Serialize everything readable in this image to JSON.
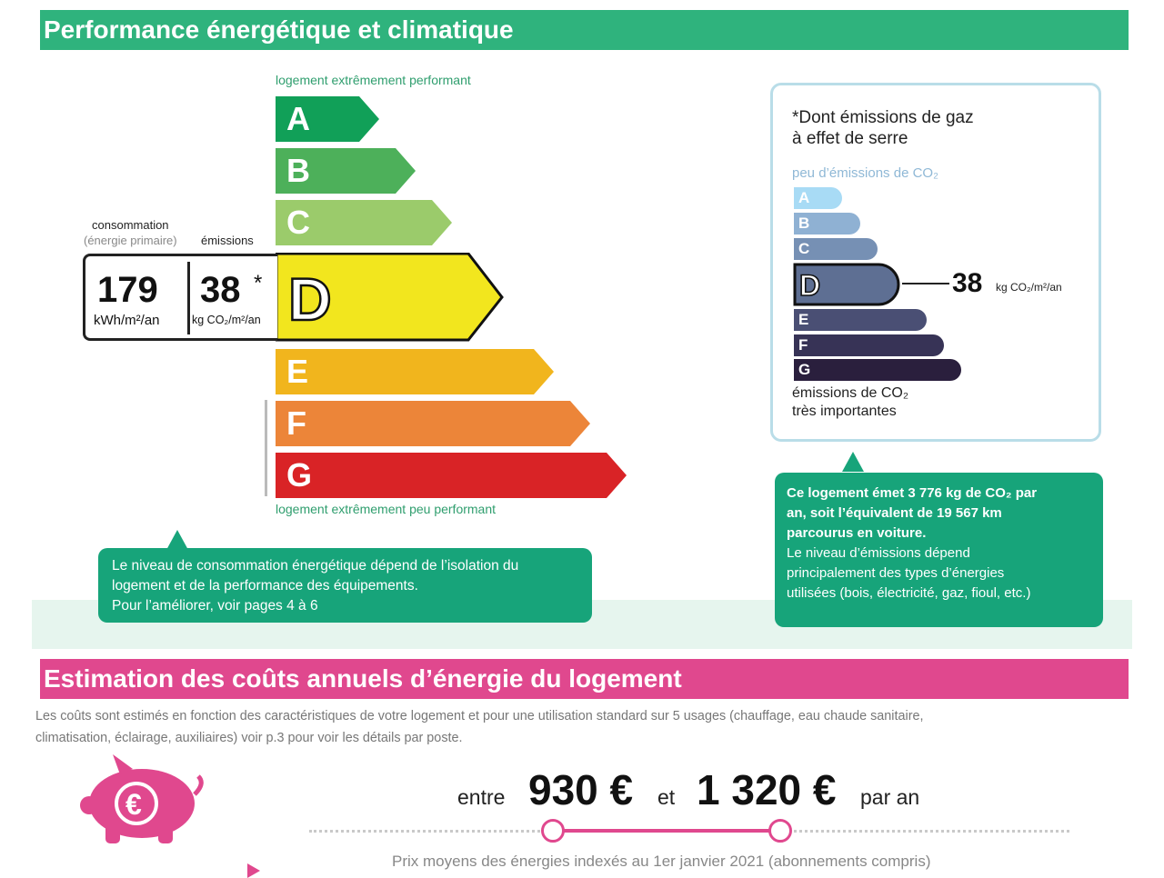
{
  "header": {
    "title": "Performance énergétique et climatique"
  },
  "energy_scale": {
    "label_top": "logement extrêmement performant",
    "label_bottom": "logement extrêmement peu performant",
    "classes": [
      {
        "letter": "A",
        "color": "#11a058"
      },
      {
        "letter": "B",
        "color": "#4db05a"
      },
      {
        "letter": "C",
        "color": "#9bcb6b"
      },
      {
        "letter": "D",
        "color": "#f2e61e"
      },
      {
        "letter": "E",
        "color": "#f1b51d"
      },
      {
        "letter": "F",
        "color": "#ec8539"
      },
      {
        "letter": "G",
        "color": "#d92326"
      }
    ],
    "current_class": "D"
  },
  "stats": {
    "consumption_label": "consommation",
    "consumption_sublabel": "(énergie primaire)",
    "emissions_label": "émissions",
    "consumption_value": "179",
    "consumption_unit": "kWh/m²/an",
    "emissions_value": "38",
    "emissions_star": "*",
    "emissions_unit": "kg CO₂/m²/an"
  },
  "left_callout": {
    "line1": "Le niveau de consommation énergétique dépend de l’isolation du",
    "line2": "logement et de la performance des équipements.",
    "line3": "Pour l’améliorer, voir pages 4 à 6"
  },
  "ghg_panel": {
    "title_line1": "*Dont émissions de gaz",
    "title_line2": "à effet de serre",
    "label_top": "peu d’émissions de CO₂",
    "label_bottom_line1": "émissions de CO₂",
    "label_bottom_line2": "très importantes",
    "classes": [
      {
        "letter": "A",
        "color": "#a8dbf5"
      },
      {
        "letter": "B",
        "color": "#8fb1d3"
      },
      {
        "letter": "C",
        "color": "#7690b4"
      },
      {
        "letter": "D",
        "color": "#5e6f93"
      },
      {
        "letter": "E",
        "color": "#4a4f74"
      },
      {
        "letter": "F",
        "color": "#373356"
      },
      {
        "letter": "G",
        "color": "#2a1f3d"
      }
    ],
    "current_class": "D",
    "value": "38",
    "unit": "kg CO₂/m²/an"
  },
  "right_callout": {
    "bold_line1": "Ce logement émet 3 776 kg de CO₂ par",
    "bold_line2": "an, soit l’équivalent de 19 567 km",
    "bold_line3": "parcourus en voiture.",
    "line4": "Le niveau d’émissions dépend",
    "line5": "principalement des types d’énergies",
    "line6": "utilisées (bois, électricité, gaz, fioul, etc.)"
  },
  "costs": {
    "title": "Estimation des coûts annuels d’énergie du logement",
    "desc_line1": "Les coûts sont estimés en fonction des caractéristiques de votre logement et pour une utilisation standard sur 5 usages (chauffage, eau chaude sanitaire,",
    "desc_line2": "climatisation, éclairage, auxiliaires) voir p.3 pour voir les détails par poste.",
    "entre": "entre",
    "min": "930 €",
    "et": "et",
    "max": "1 320 €",
    "par_an": "par an",
    "footnote": "Prix moyens des énergies indexés au  1er janvier 2021 (abonnements compris)",
    "piggy_symbol": "€",
    "pink": "#e0488e"
  }
}
